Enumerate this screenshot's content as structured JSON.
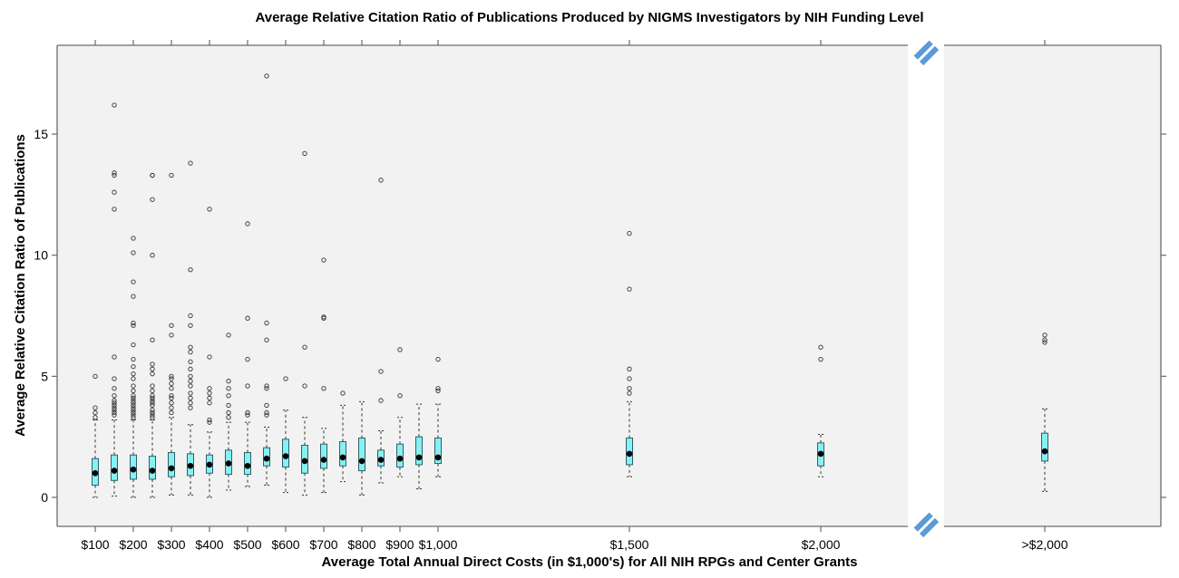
{
  "chart_data": {
    "type": "boxplot",
    "title": "Average Relative Citation Ratio of Publications Produced by NIGMS Investigators by NIH Funding Level",
    "xlabel": "Average Total Annual Direct Costs (in $1,000's) for All NIH RPGs and Center Grants",
    "ylabel": "Average Relative Citation Ratio of Publications",
    "ylim": [
      -1.2,
      17.9
    ],
    "yticks": [
      0,
      5,
      10,
      15
    ],
    "ytick_labels": [
      "0",
      "5",
      "10",
      "15"
    ],
    "axis_break": "between $2,000 and >$2,000",
    "grid": false,
    "colors": {
      "box_fill": "#86f1f3",
      "box_stroke": "#2f5f66",
      "median": "#000000",
      "panel_bg": "#f2f2f2",
      "break_marker": "#5b9bd5"
    },
    "categories": [
      "$100",
      "$200",
      "$300",
      "$400",
      "$500",
      "$600",
      "$700",
      "$800",
      "$900",
      "$1,000",
      "$1,500",
      "$2,000",
      ">$2,000"
    ],
    "boxes": [
      {
        "label": "$100",
        "x": 100,
        "min": 0.0,
        "q1": 0.5,
        "median": 1.0,
        "q3": 1.6,
        "max": 3.2,
        "outliers": [
          3.3,
          3.5,
          3.7,
          5.0
        ]
      },
      {
        "label": "",
        "x": 150,
        "min": 0.05,
        "q1": 0.7,
        "median": 1.1,
        "q3": 1.75,
        "max": 3.2,
        "outliers": [
          3.4,
          3.5,
          3.6,
          3.7,
          3.8,
          3.9,
          4.0,
          4.2,
          4.5,
          4.9,
          5.8,
          11.9,
          12.6,
          13.3,
          13.4,
          16.2
        ]
      },
      {
        "label": "$200",
        "x": 200,
        "min": 0.0,
        "q1": 0.75,
        "median": 1.15,
        "q3": 1.75,
        "max": 3.2,
        "outliers": [
          3.3,
          3.4,
          3.5,
          3.6,
          3.7,
          3.8,
          3.9,
          4.0,
          4.1,
          4.2,
          4.4,
          4.6,
          4.9,
          5.1,
          5.4,
          5.7,
          6.3,
          7.1,
          7.2,
          8.3,
          8.9,
          10.1,
          10.7
        ]
      },
      {
        "label": "",
        "x": 250,
        "min": 0.0,
        "q1": 0.75,
        "median": 1.1,
        "q3": 1.7,
        "max": 3.2,
        "outliers": [
          3.3,
          3.4,
          3.5,
          3.6,
          3.8,
          3.9,
          4.0,
          4.1,
          4.2,
          4.4,
          4.6,
          5.1,
          5.3,
          5.5,
          6.5,
          10.0,
          12.3,
          13.3,
          13.3
        ]
      },
      {
        "label": "$300",
        "x": 300,
        "min": 0.1,
        "q1": 0.85,
        "median": 1.2,
        "q3": 1.85,
        "max": 3.3,
        "outliers": [
          3.5,
          3.7,
          3.9,
          4.1,
          4.2,
          4.5,
          4.7,
          4.9,
          5.0,
          6.7,
          7.1,
          13.3
        ]
      },
      {
        "label": "",
        "x": 350,
        "min": 0.1,
        "q1": 0.9,
        "median": 1.3,
        "q3": 1.8,
        "max": 3.0,
        "outliers": [
          3.7,
          3.9,
          4.1,
          4.3,
          4.6,
          4.8,
          5.0,
          5.3,
          5.6,
          6.0,
          6.2,
          7.1,
          7.5,
          9.4,
          13.8
        ]
      },
      {
        "label": "$400",
        "x": 400,
        "min": 0.0,
        "q1": 1.0,
        "median": 1.35,
        "q3": 1.75,
        "max": 2.7,
        "outliers": [
          3.1,
          3.2,
          3.9,
          4.1,
          4.3,
          4.5,
          5.8,
          11.9
        ]
      },
      {
        "label": "",
        "x": 450,
        "min": 0.3,
        "q1": 0.95,
        "median": 1.4,
        "q3": 1.95,
        "max": 3.1,
        "outliers": [
          3.3,
          3.5,
          3.8,
          4.2,
          4.5,
          4.8,
          6.7
        ]
      },
      {
        "label": "$500",
        "x": 500,
        "min": 0.45,
        "q1": 0.95,
        "median": 1.3,
        "q3": 1.85,
        "max": 3.1,
        "outliers": [
          3.4,
          3.5,
          4.6,
          5.7,
          7.4,
          11.3
        ]
      },
      {
        "label": "",
        "x": 550,
        "min": 0.5,
        "q1": 1.3,
        "median": 1.6,
        "q3": 2.05,
        "max": 2.9,
        "outliers": [
          3.4,
          3.5,
          3.8,
          4.5,
          4.6,
          6.5,
          7.2,
          17.4
        ]
      },
      {
        "label": "$600",
        "x": 600,
        "min": 0.2,
        "q1": 1.25,
        "median": 1.7,
        "q3": 2.4,
        "max": 3.6,
        "outliers": [
          4.9
        ]
      },
      {
        "label": "",
        "x": 650,
        "min": 0.1,
        "q1": 1.0,
        "median": 1.5,
        "q3": 2.15,
        "max": 3.3,
        "outliers": [
          4.6,
          6.2,
          14.2
        ]
      },
      {
        "label": "$700",
        "x": 700,
        "min": 0.2,
        "q1": 1.2,
        "median": 1.55,
        "q3": 2.2,
        "max": 2.85,
        "outliers": [
          4.5,
          7.4,
          7.45,
          9.8
        ]
      },
      {
        "label": "",
        "x": 750,
        "min": 0.65,
        "q1": 1.3,
        "median": 1.65,
        "q3": 2.3,
        "max": 3.8,
        "outliers": [
          4.3
        ]
      },
      {
        "label": "$800",
        "x": 800,
        "min": 0.1,
        "q1": 1.1,
        "median": 1.5,
        "q3": 2.45,
        "max": 3.95,
        "outliers": []
      },
      {
        "label": "",
        "x": 850,
        "min": 0.6,
        "q1": 1.3,
        "median": 1.55,
        "q3": 1.95,
        "max": 2.75,
        "outliers": [
          4.0,
          5.2,
          13.1
        ]
      },
      {
        "label": "$900",
        "x": 900,
        "min": 0.85,
        "q1": 1.25,
        "median": 1.6,
        "q3": 2.2,
        "max": 3.3,
        "outliers": [
          4.2,
          6.1
        ]
      },
      {
        "label": "",
        "x": 950,
        "min": 0.35,
        "q1": 1.35,
        "median": 1.65,
        "q3": 2.5,
        "max": 3.85,
        "outliers": []
      },
      {
        "label": "$1,000",
        "x": 1000,
        "min": 0.85,
        "q1": 1.4,
        "median": 1.65,
        "q3": 2.45,
        "max": 3.85,
        "outliers": [
          4.4,
          4.5,
          5.7
        ]
      },
      {
        "label": "$1,500",
        "x": 1500,
        "min": 0.85,
        "q1": 1.35,
        "median": 1.8,
        "q3": 2.45,
        "max": 3.95,
        "outliers": [
          4.3,
          4.5,
          4.9,
          5.3,
          8.6,
          10.9
        ]
      },
      {
        "label": "$2,000",
        "x": 2000,
        "min": 0.85,
        "q1": 1.3,
        "median": 1.8,
        "q3": 2.25,
        "max": 2.6,
        "outliers": [
          5.7,
          6.2
        ]
      },
      {
        "label": ">$2,000",
        "x": 2500,
        "min": 0.25,
        "q1": 1.5,
        "median": 1.9,
        "q3": 2.65,
        "max": 3.65,
        "outliers": [
          6.4,
          6.5,
          6.7
        ]
      }
    ],
    "xticks": [
      {
        "label": "$100",
        "x": 100
      },
      {
        "label": "$200",
        "x": 200
      },
      {
        "label": "$300",
        "x": 300
      },
      {
        "label": "$400",
        "x": 400
      },
      {
        "label": "$500",
        "x": 500
      },
      {
        "label": "$600",
        "x": 600
      },
      {
        "label": "$700",
        "x": 700
      },
      {
        "label": "$800",
        "x": 800
      },
      {
        "label": "$900",
        "x": 900
      },
      {
        "label": "$1,000",
        "x": 1000
      },
      {
        "label": "$1,500",
        "x": 1500
      },
      {
        "label": "$2,000",
        "x": 2000
      },
      {
        "label": ">$2,000",
        "x": 2500
      }
    ]
  }
}
